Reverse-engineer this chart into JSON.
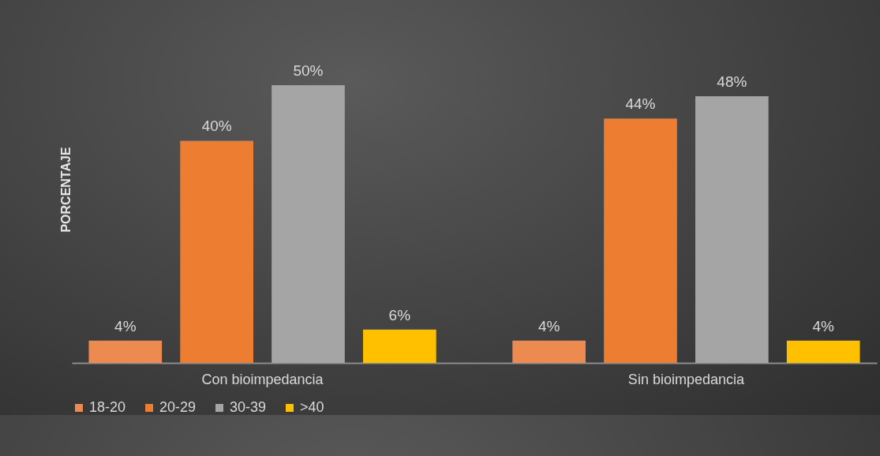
{
  "chart_data": {
    "type": "bar",
    "ylabel": "PORCENTAJE",
    "categories": [
      "Con bioimpedancia",
      "Sin bioimpedancia"
    ],
    "legend": "bottom",
    "series": [
      {
        "name": "18-20",
        "color": "#ed8a50",
        "values": [
          4,
          4
        ],
        "value_labels": [
          "4%",
          "4%"
        ]
      },
      {
        "name": "20-29",
        "color": "#ed7d31",
        "values": [
          40,
          44
        ],
        "value_labels": [
          "40%",
          "44%"
        ]
      },
      {
        "name": "30-39",
        "color": "#a5a5a5",
        "values": [
          50,
          48
        ],
        "value_labels": [
          "50%",
          "48%"
        ]
      },
      {
        "name": ">40",
        "color": "#ffc000",
        "values": [
          6,
          4
        ],
        "value_labels": [
          "6%",
          "4%"
        ]
      }
    ]
  }
}
